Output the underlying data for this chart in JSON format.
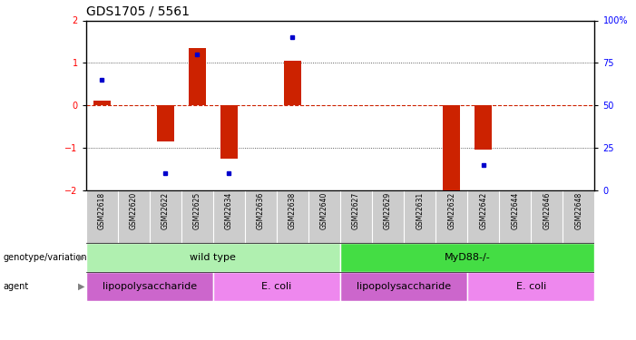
{
  "title": "GDS1705 / 5561",
  "samples": [
    "GSM22618",
    "GSM22620",
    "GSM22622",
    "GSM22625",
    "GSM22634",
    "GSM22636",
    "GSM22638",
    "GSM22640",
    "GSM22627",
    "GSM22629",
    "GSM22631",
    "GSM22632",
    "GSM22642",
    "GSM22644",
    "GSM22646",
    "GSM22648"
  ],
  "log2_ratio": [
    0.12,
    0.0,
    -0.85,
    1.35,
    -1.25,
    0.0,
    1.05,
    0.0,
    0.0,
    0.0,
    0.0,
    -2.0,
    -1.05,
    0.0,
    0.0,
    0.0
  ],
  "percentile": [
    65,
    0,
    10,
    80,
    10,
    0,
    90,
    0,
    0,
    0,
    0,
    0,
    15,
    0,
    0,
    0
  ],
  "ylim": [
    -2,
    2
  ],
  "y2lim": [
    0,
    100
  ],
  "yticks": [
    -2,
    -1,
    0,
    1,
    2
  ],
  "y2ticks": [
    0,
    25,
    50,
    75,
    100
  ],
  "genotype_groups": [
    {
      "label": "wild type",
      "start": 0,
      "end": 7,
      "color": "#b0f0b0"
    },
    {
      "label": "MyD88-/-",
      "start": 8,
      "end": 15,
      "color": "#44dd44"
    }
  ],
  "agent_groups": [
    {
      "label": "lipopolysaccharide",
      "start": 0,
      "end": 3,
      "color": "#cc66cc"
    },
    {
      "label": "E. coli",
      "start": 4,
      "end": 7,
      "color": "#ee88ee"
    },
    {
      "label": "lipopolysaccharide",
      "start": 8,
      "end": 11,
      "color": "#cc66cc"
    },
    {
      "label": "E. coli",
      "start": 12,
      "end": 15,
      "color": "#ee88ee"
    }
  ],
  "bar_color": "#cc2200",
  "dot_color": "#0000cc",
  "zero_line_color": "#cc2200",
  "grid_line_color": "#333333",
  "background_color": "#ffffff",
  "title_fontsize": 10,
  "tick_fontsize": 7,
  "annotation_fontsize": 7,
  "row_label_fontsize": 7,
  "sample_fontsize": 5.5,
  "legend_fontsize": 7
}
